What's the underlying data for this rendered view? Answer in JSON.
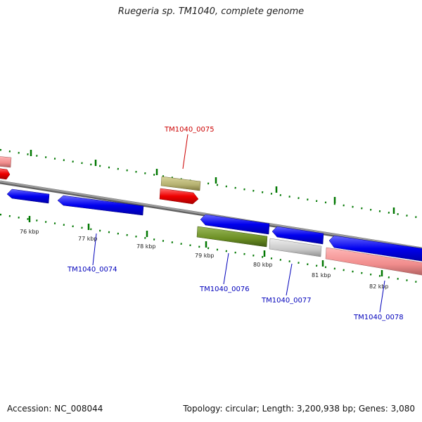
{
  "title": "Ruegeria sp. TM1040, complete genome",
  "footer": {
    "accession": "Accession: NC_008044",
    "summary": "Topology: circular; Length: 3,200,938 bp; Genes: 3,080"
  },
  "scale_labels": [
    "76 kbp",
    "77 kbp",
    "78 kbp",
    "79 kbp",
    "80 kbp",
    "81 kbp",
    "82 kbp"
  ],
  "gene_labels": [
    {
      "id": "g75",
      "text": "TM1040_0075",
      "color": "#cc0000"
    },
    {
      "id": "g74",
      "text": "TM1040_0074",
      "color": "#0000bb"
    },
    {
      "id": "g76",
      "text": "TM1040_0076",
      "color": "#0000bb"
    },
    {
      "id": "g77",
      "text": "TM1040_0077",
      "color": "#0000bb"
    },
    {
      "id": "g78",
      "text": "TM1040_0078",
      "color": "#0000bb"
    }
  ],
  "colors": {
    "backbone": "#808080",
    "forward_cds": "#0000ee",
    "reverse_cds": "#ee0000",
    "pink_feature": "#f08c8c",
    "olive_feature": "#b4b070",
    "green_feature": "#6b8e23",
    "gray_feature": "#c8c8c8",
    "tick": "#007700"
  }
}
